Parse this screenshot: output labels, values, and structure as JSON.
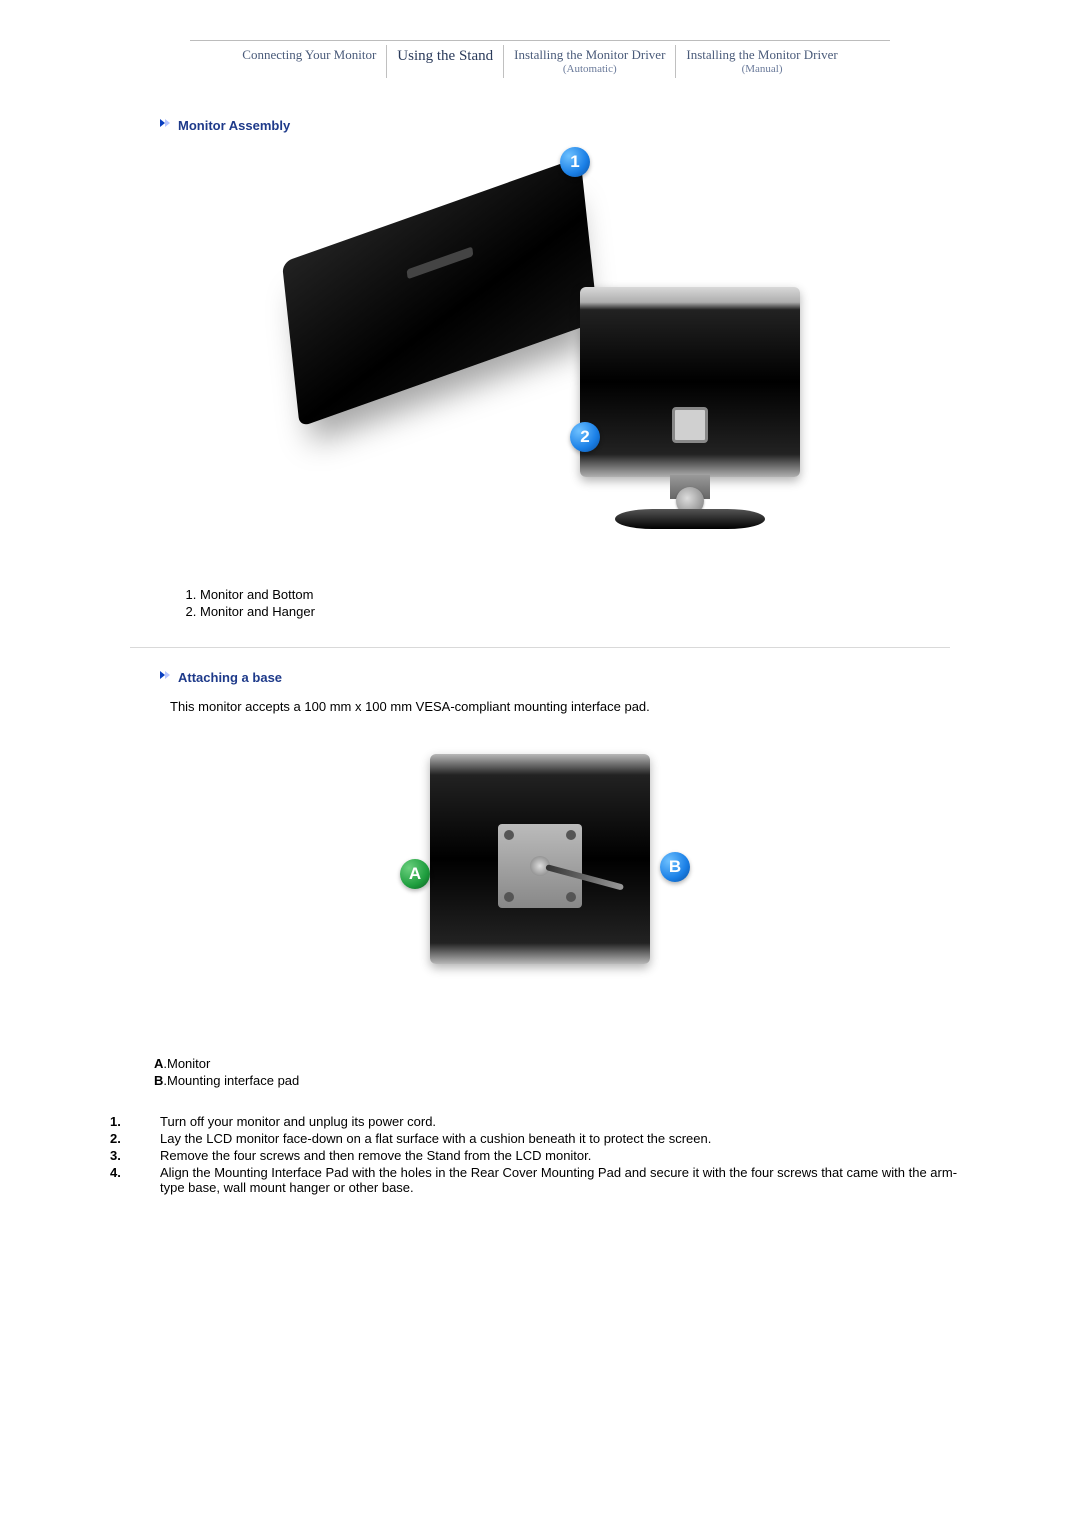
{
  "tabs": {
    "t1": "Connecting Your Monitor",
    "t2": "Using the Stand",
    "t3_line1": "Installing the Monitor Driver",
    "t3_line2": "(Automatic)",
    "t4_line1": "Installing the Monitor Driver",
    "t4_line2": "(Manual)"
  },
  "section1": {
    "title": "Monitor Assembly",
    "callout1": "1",
    "callout2": "2",
    "list": {
      "i1": "Monitor and Bottom",
      "i2": "Monitor and Hanger"
    }
  },
  "section2": {
    "title": "Attaching a base",
    "intro": "This monitor accepts a 100 mm x 100 mm VESA-compliant mounting interface pad.",
    "badgeA": "A",
    "badgeB": "B",
    "ab": {
      "aKey": "A",
      "aVal": ".Monitor",
      "bKey": "B",
      "bVal": ".Mounting interface pad"
    },
    "steps": {
      "n1": "1",
      "s1": "Turn off your monitor and unplug its power cord.",
      "n2": "2",
      "s2": "Lay the LCD monitor face-down on a flat surface with a cushion beneath it to protect the screen.",
      "n3": "3",
      "s3": "Remove the four screws and then remove the Stand from the LCD monitor.",
      "n4": "4",
      "s4": "Align the Mounting Interface Pad with the holes in the Rear Cover Mounting Pad and secure it with the four screws that came with the arm-type base, wall mount hanger or other base."
    },
    "step_dot": "."
  },
  "style": {
    "title_color": "#1e3a8a",
    "badge_blue": "#1a7fe6",
    "badge_green": "#1e9e3e"
  }
}
